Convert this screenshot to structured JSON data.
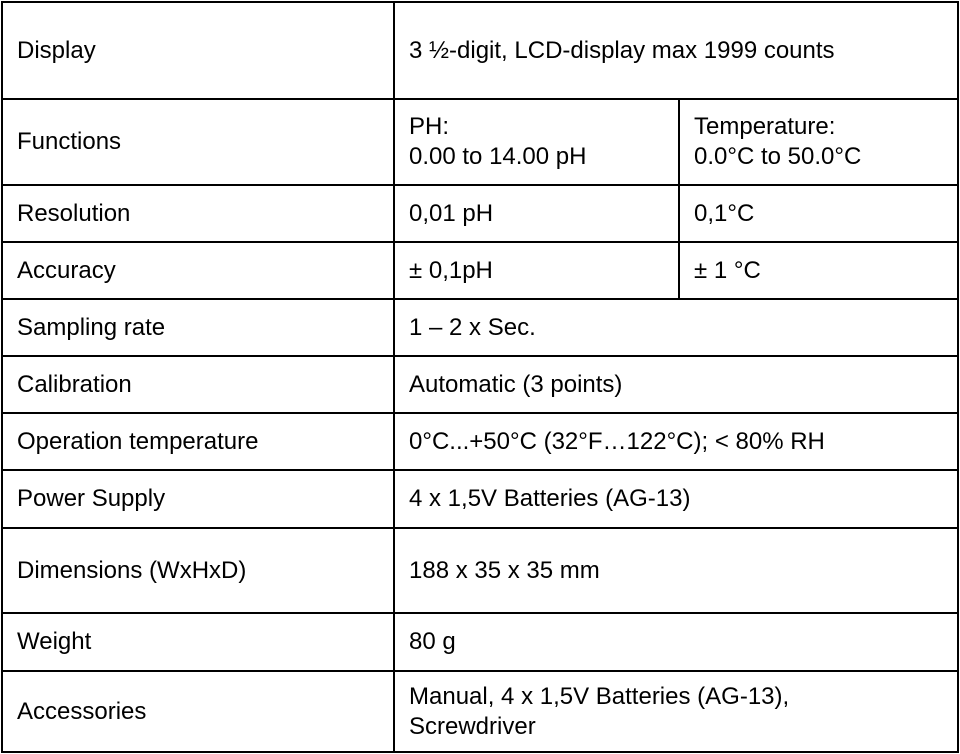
{
  "spec_table": {
    "rows": [
      {
        "label": "Display",
        "value": "3 ½-digit, LCD-display max 1999 counts"
      },
      {
        "label": "Functions",
        "ph_title": "PH:",
        "ph_range": "0.00 to 14.00 pH",
        "temp_title": "Temperature:",
        "temp_range": "0.0°C to 50.0°C"
      },
      {
        "label": "Resolution",
        "ph": "0,01 pH",
        "temp": "0,1°C"
      },
      {
        "label": "Accuracy",
        "ph": "± 0,1pH",
        "temp": "± 1 °C"
      },
      {
        "label": "Sampling rate",
        "value": "1 – 2 x Sec."
      },
      {
        "label": "Calibration",
        "value": "Automatic (3 points)"
      },
      {
        "label": "Operation temperature",
        "value": "0°C...+50°C (32°F…122°C); < 80% RH"
      },
      {
        "label": "Power Supply",
        "value": "4 x 1,5V Batteries (AG-13)"
      },
      {
        "label": "Dimensions (WxHxD)",
        "value": "188 x 35 x 35 mm"
      },
      {
        "label": "Weight",
        "value": "80 g"
      },
      {
        "label": "Accessories",
        "value_line1": "Manual, 4 x 1,5V Batteries (AG-13),",
        "value_line2": "Screwdriver"
      }
    ]
  }
}
